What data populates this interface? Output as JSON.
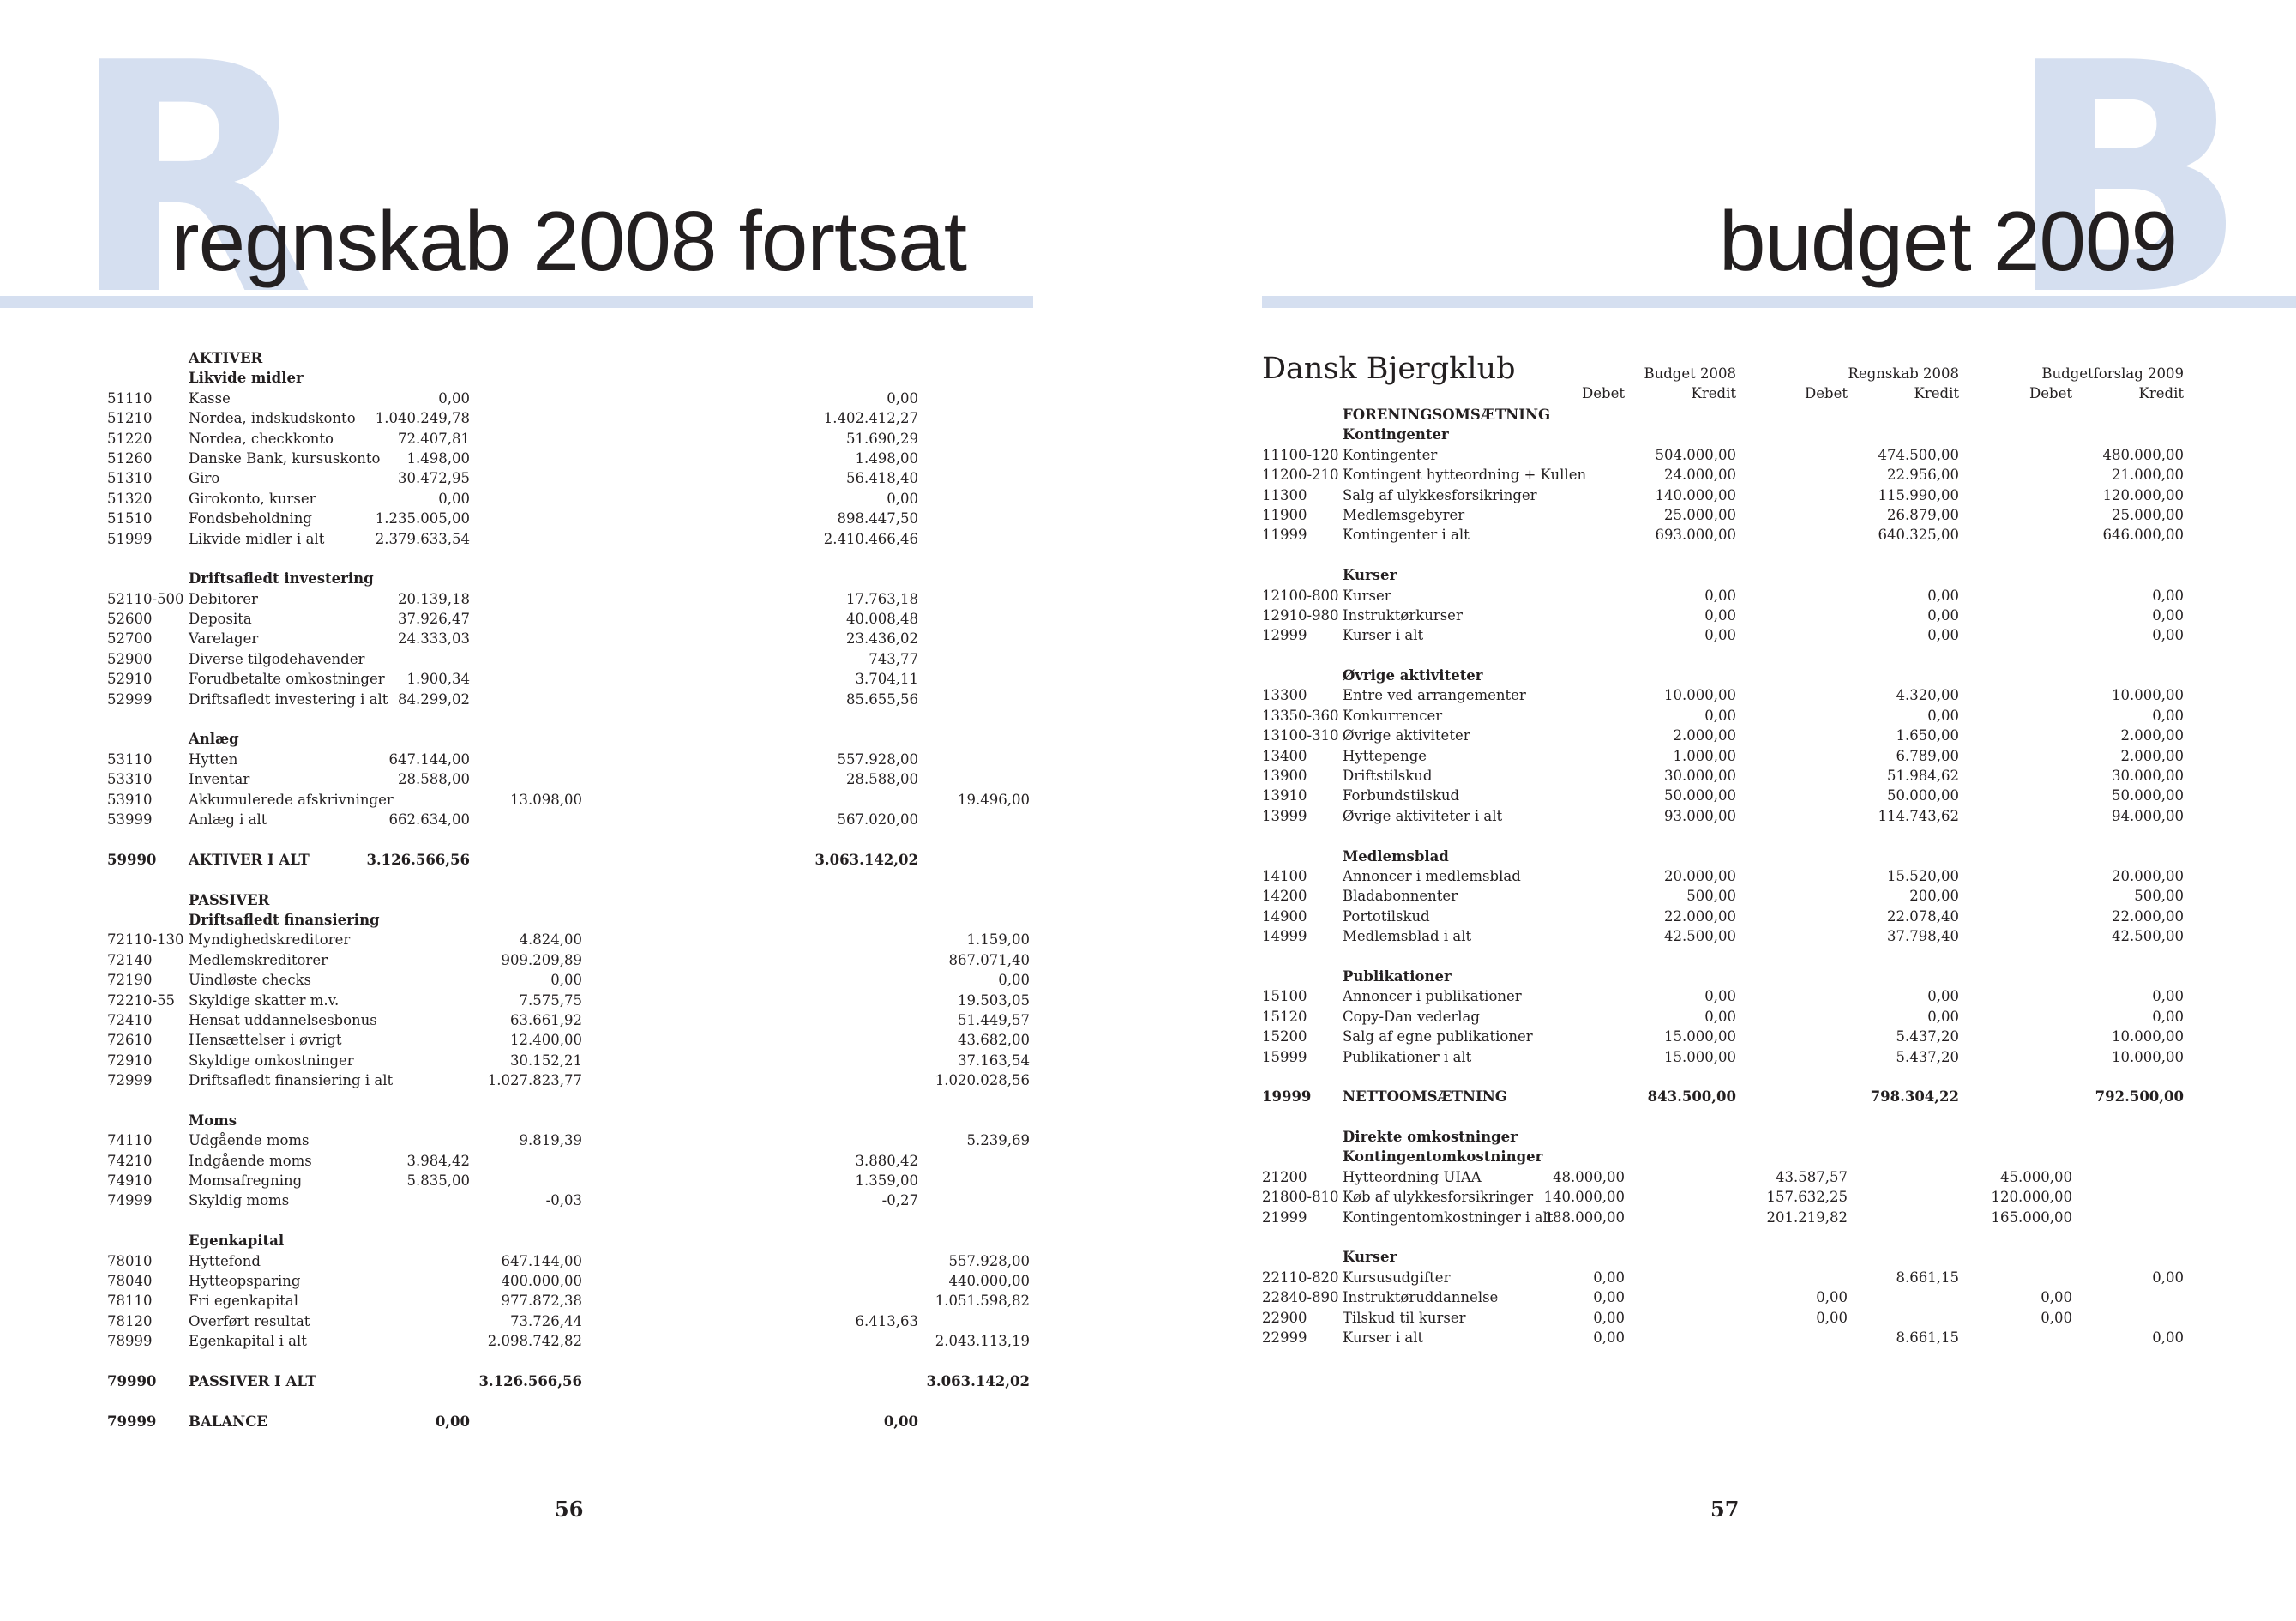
{
  "left": {
    "big_letter": "R",
    "heading": "regnskab 2008 fortsat",
    "page_number": "56",
    "rows": [
      {
        "code": "",
        "name": "AKTIVER",
        "style": "b"
      },
      {
        "code": "",
        "name": "Likvide midler",
        "style": "b"
      },
      {
        "code": "51110",
        "name": "Kasse",
        "c1": "0,00",
        "c3": "0,00"
      },
      {
        "code": "51210",
        "name": "Nordea, indskudskonto",
        "c1": "1.040.249,78",
        "c3": "1.402.412,27"
      },
      {
        "code": "51220",
        "name": "Nordea, checkkonto",
        "c1": "72.407,81",
        "c3": "51.690,29"
      },
      {
        "code": "51260",
        "name": "Danske Bank, kursuskonto",
        "c1": "1.498,00",
        "c3": "1.498,00"
      },
      {
        "code": "51310",
        "name": "Giro",
        "c1": "30.472,95",
        "c3": "56.418,40"
      },
      {
        "code": "51320",
        "name": "Girokonto, kurser",
        "c1": "0,00",
        "c3": "0,00"
      },
      {
        "code": "51510",
        "name": "Fondsbeholdning",
        "c1": "1.235.005,00",
        "c3": "898.447,50"
      },
      {
        "code": "51999",
        "name": "Likvide midler i alt",
        "c1": "2.379.633,54",
        "c3": "2.410.466,46"
      },
      {
        "gap": true
      },
      {
        "code": "",
        "name": "Driftsafledt investering",
        "style": "b"
      },
      {
        "code": "52110-500",
        "name": "Debitorer",
        "c1": "20.139,18",
        "c3": "17.763,18"
      },
      {
        "code": "52600",
        "name": "Deposita",
        "c1": "37.926,47",
        "c3": "40.008,48"
      },
      {
        "code": "52700",
        "name": "Varelager",
        "c1": "24.333,03",
        "c3": "23.436,02"
      },
      {
        "code": "52900",
        "name": "Diverse tilgodehavender",
        "c3": "743,77"
      },
      {
        "code": "52910",
        "name": "Forudbetalte omkostninger",
        "c1": "1.900,34",
        "c3": "3.704,11"
      },
      {
        "code": "52999",
        "name": "Driftsafledt investering i alt",
        "c1": "84.299,02",
        "c3": "85.655,56"
      },
      {
        "gap": true
      },
      {
        "code": "",
        "name": "Anlæg",
        "style": "b"
      },
      {
        "code": "53110",
        "name": "Hytten",
        "c1": "647.144,00",
        "c3": "557.928,00"
      },
      {
        "code": "53310",
        "name": "Inventar",
        "c1": "28.588,00",
        "c3": "28.588,00"
      },
      {
        "code": "53910",
        "name": "Akkumulerede afskrivninger",
        "c2": "13.098,00",
        "c4": "19.496,00"
      },
      {
        "code": "53999",
        "name": "Anlæg i alt",
        "c1": "662.634,00",
        "c3": "567.020,00"
      },
      {
        "gap": true
      },
      {
        "code": "59990",
        "name": "AKTIVER I ALT",
        "c1": "3.126.566,56",
        "c3": "3.063.142,02",
        "style": "b"
      },
      {
        "gap": true
      },
      {
        "code": "",
        "name": "PASSIVER",
        "style": "b"
      },
      {
        "code": "",
        "name": "Driftsafledt finansiering",
        "style": "b"
      },
      {
        "code": "72110-130",
        "name": "Myndighedskreditorer",
        "c2": "4.824,00",
        "c4": "1.159,00"
      },
      {
        "code": "72140",
        "name": "Medlemskreditorer",
        "c2": "909.209,89",
        "c4": "867.071,40"
      },
      {
        "code": "72190",
        "name": "Uindløste checks",
        "c2": "0,00",
        "c4": "0,00"
      },
      {
        "code": "72210-55",
        "name": "Skyldige skatter m.v.",
        "c2": "7.575,75",
        "c4": "19.503,05"
      },
      {
        "code": "72410",
        "name": "Hensat uddannelsesbonus",
        "c2": "63.661,92",
        "c4": "51.449,57"
      },
      {
        "code": "72610",
        "name": "Hensættelser i øvrigt",
        "c2": "12.400,00",
        "c4": "43.682,00"
      },
      {
        "code": "72910",
        "name": "Skyldige omkostninger",
        "c2": "30.152,21",
        "c4": "37.163,54"
      },
      {
        "code": "72999",
        "name": "Driftsafledt finansiering i alt",
        "c2": "1.027.823,77",
        "c4": "1.020.028,56"
      },
      {
        "gap": true
      },
      {
        "code": "",
        "name": "Moms",
        "style": "b"
      },
      {
        "code": "74110",
        "name": "Udgående moms",
        "c2": "9.819,39",
        "c4": "5.239,69"
      },
      {
        "code": "74210",
        "name": "Indgående moms",
        "c1": "3.984,42",
        "c3": "3.880,42"
      },
      {
        "code": "74910",
        "name": "Momsafregning",
        "c1": "5.835,00",
        "c3": "1.359,00"
      },
      {
        "code": "74999",
        "name": "Skyldig moms",
        "c2": "-0,03",
        "c3": "-0,27"
      },
      {
        "gap": true
      },
      {
        "code": "",
        "name": "Egenkapital",
        "style": "b"
      },
      {
        "code": "78010",
        "name": "Hyttefond",
        "c2": "647.144,00",
        "c4": "557.928,00"
      },
      {
        "code": "78040",
        "name": "Hytteopsparing",
        "c2": "400.000,00",
        "c4": "440.000,00"
      },
      {
        "code": "78110",
        "name": "Fri egenkapital",
        "c2": "977.872,38",
        "c4": "1.051.598,82"
      },
      {
        "code": "78120",
        "name": "Overført resultat",
        "c2": "73.726,44",
        "c3": "6.413,63"
      },
      {
        "code": "78999",
        "name": "Egenkapital i alt",
        "c2": "2.098.742,82",
        "c4": "2.043.113,19"
      },
      {
        "gap": true
      },
      {
        "code": "79990",
        "name": "PASSIVER I ALT",
        "c2": "3.126.566,56",
        "c4": "3.063.142,02",
        "style": "b"
      },
      {
        "gap": true
      },
      {
        "code": "79999",
        "name": "BALANCE",
        "c1": "0,00",
        "c3": "0,00",
        "style": "b"
      }
    ]
  },
  "right": {
    "big_letter": "B",
    "heading": "budget 2009",
    "page_number": "57",
    "title": "Dansk Bjergklub",
    "group_headers": [
      "Budget 2008",
      "Regnskab 2008",
      "Budgetforslag 2009"
    ],
    "debet_label": "Debet",
    "kredit_label": "Kredit",
    "rows": [
      {
        "code": "",
        "name": "FORENINGSOMSÆTNING",
        "style": "b"
      },
      {
        "code": "",
        "name": "Kontingenter",
        "style": "b"
      },
      {
        "code": "11100-120",
        "name": "Kontingenter",
        "c2": "504.000,00",
        "c4": "474.500,00",
        "c6": "480.000,00"
      },
      {
        "code": "11200-210",
        "name": "Kontingent hytteordning + Kullen",
        "c2": "24.000,00",
        "c4": "22.956,00",
        "c6": "21.000,00"
      },
      {
        "code": "11300",
        "name": "Salg af ulykkesforsikringer",
        "c2": "140.000,00",
        "c4": "115.990,00",
        "c6": "120.000,00"
      },
      {
        "code": "11900",
        "name": "Medlemsgebyrer",
        "c2": "25.000,00",
        "c4": "26.879,00",
        "c6": "25.000,00"
      },
      {
        "code": "11999",
        "name": "Kontingenter i alt",
        "c2": "693.000,00",
        "c4": "640.325,00",
        "c6": "646.000,00"
      },
      {
        "gap": true
      },
      {
        "code": "",
        "name": "Kurser",
        "style": "b"
      },
      {
        "code": "12100-800",
        "name": "Kurser",
        "c2": "0,00",
        "c4": "0,00",
        "c6": "0,00"
      },
      {
        "code": "12910-980",
        "name": "Instruktørkurser",
        "c2": "0,00",
        "c4": "0,00",
        "c6": "0,00"
      },
      {
        "code": "12999",
        "name": "Kurser i alt",
        "c2": "0,00",
        "c4": "0,00",
        "c6": "0,00"
      },
      {
        "gap": true
      },
      {
        "code": "",
        "name": "Øvrige aktiviteter",
        "style": "b"
      },
      {
        "code": "13300",
        "name": "Entre ved arrangementer",
        "c2": "10.000,00",
        "c4": "4.320,00",
        "c6": "10.000,00"
      },
      {
        "code": "13350-360",
        "name": "Konkurrencer",
        "c2": "0,00",
        "c4": "0,00",
        "c6": "0,00"
      },
      {
        "code": "13100-310",
        "name": "Øvrige aktiviteter",
        "c2": "2.000,00",
        "c4": "1.650,00",
        "c6": "2.000,00"
      },
      {
        "code": "13400",
        "name": "Hyttepenge",
        "c2": "1.000,00",
        "c4": "6.789,00",
        "c6": "2.000,00"
      },
      {
        "code": "13900",
        "name": "Driftstilskud",
        "c2": "30.000,00",
        "c4": "51.984,62",
        "c6": "30.000,00"
      },
      {
        "code": "13910",
        "name": "Forbundstilskud",
        "c2": "50.000,00",
        "c4": "50.000,00",
        "c6": "50.000,00"
      },
      {
        "code": "13999",
        "name": "Øvrige aktiviteter i alt",
        "c2": "93.000,00",
        "c4": "114.743,62",
        "c6": "94.000,00"
      },
      {
        "gap": true
      },
      {
        "code": "",
        "name": "Medlemsblad",
        "style": "b"
      },
      {
        "code": "14100",
        "name": "Annoncer i medlemsblad",
        "c2": "20.000,00",
        "c4": "15.520,00",
        "c6": "20.000,00"
      },
      {
        "code": "14200",
        "name": "Bladabonnenter",
        "c2": "500,00",
        "c4": "200,00",
        "c6": "500,00"
      },
      {
        "code": "14900",
        "name": "Portotilskud",
        "c2": "22.000,00",
        "c4": "22.078,40",
        "c6": "22.000,00"
      },
      {
        "code": "14999",
        "name": "Medlemsblad i alt",
        "c2": "42.500,00",
        "c4": "37.798,40",
        "c6": "42.500,00"
      },
      {
        "gap": true
      },
      {
        "code": "",
        "name": "Publikationer",
        "style": "b"
      },
      {
        "code": "15100",
        "name": "Annoncer i publikationer",
        "c2": "0,00",
        "c4": "0,00",
        "c6": "0,00"
      },
      {
        "code": "15120",
        "name": "Copy-Dan vederlag",
        "c2": "0,00",
        "c4": "0,00",
        "c6": "0,00"
      },
      {
        "code": "15200",
        "name": "Salg af egne publikationer",
        "c2": "15.000,00",
        "c4": "5.437,20",
        "c6": "10.000,00"
      },
      {
        "code": "15999",
        "name": "Publikationer i alt",
        "c2": "15.000,00",
        "c4": "5.437,20",
        "c6": "10.000,00"
      },
      {
        "gap": true
      },
      {
        "code": "19999",
        "name": "NETTOOMSÆTNING",
        "c2": "843.500,00",
        "c4": "798.304,22",
        "c6": "792.500,00",
        "style": "b"
      },
      {
        "gap": true
      },
      {
        "code": "",
        "name": "Direkte omkostninger",
        "style": "b"
      },
      {
        "code": "",
        "name": "Kontingentomkostninger",
        "style": "b"
      },
      {
        "code": "21200",
        "name": "Hytteordning UIAA",
        "c1": "48.000,00",
        "c3": "43.587,57",
        "c5": "45.000,00"
      },
      {
        "code": "21800-810",
        "name": "Køb af ulykkesforsikringer",
        "c1": "140.000,00",
        "c3": "157.632,25",
        "c5": "120.000,00"
      },
      {
        "code": "21999",
        "name": "Kontingentomkostninger i alt",
        "c1": "188.000,00",
        "c3": "201.219,82",
        "c5": "165.000,00"
      },
      {
        "gap": true
      },
      {
        "code": "",
        "name": "Kurser",
        "style": "b"
      },
      {
        "code": "22110-820",
        "name": "Kursusudgifter",
        "c1": "0,00",
        "c4": "8.661,15",
        "c6": "0,00"
      },
      {
        "code": "22840-890",
        "name": "Instruktøruddannelse",
        "c1": "0,00",
        "c3": "0,00",
        "c5": "0,00"
      },
      {
        "code": "22900",
        "name": "Tilskud til kurser",
        "c1": "0,00",
        "c3": "0,00",
        "c5": "0,00"
      },
      {
        "code": "22999",
        "name": "Kurser i alt",
        "c1": "0,00",
        "c4": "8.661,15",
        "c6": "0,00"
      }
    ]
  }
}
